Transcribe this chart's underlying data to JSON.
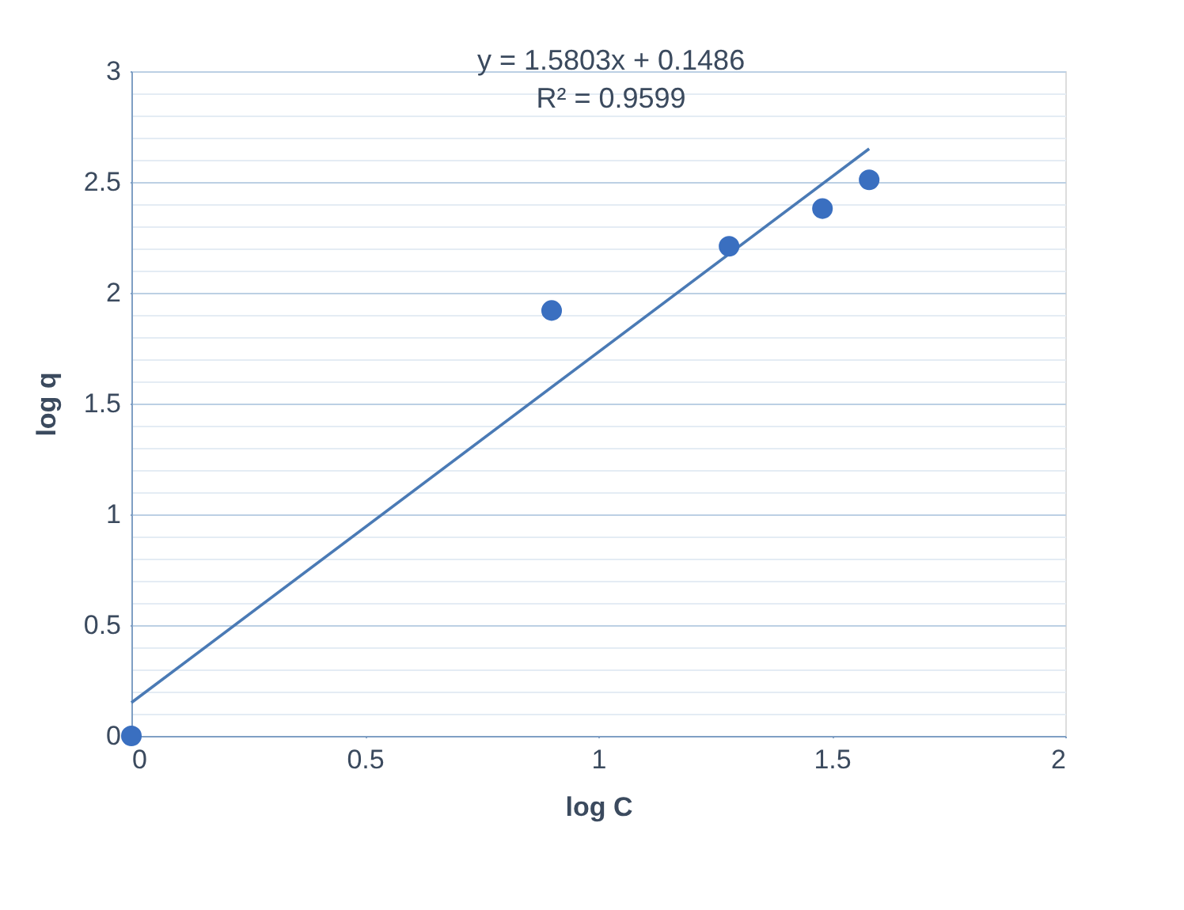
{
  "chart_data": {
    "type": "scatter",
    "xlabel": "log C",
    "ylabel": "log q",
    "annotations": [
      "y = 1.5803x + 0.1486",
      "R² = 0.9599"
    ],
    "series": [
      {
        "color": "#3a6fc0",
        "marker": "circle",
        "x": [
          0,
          0.9,
          1.28,
          1.48,
          1.58
        ],
        "values": [
          0,
          1.92,
          2.21,
          2.38,
          2.51
        ]
      },
      {
        "type": "line",
        "color": "#4a7ab5",
        "marker": "none",
        "line_style": "solid",
        "x": [
          0,
          1.58
        ],
        "values": [
          0.15,
          2.65
        ]
      }
    ],
    "xlim": [
      0,
      2
    ],
    "xticks": [
      0,
      0.5,
      1,
      1.5,
      2
    ],
    "ylim": [
      0,
      3
    ],
    "yticks": [
      0,
      {
        "value": 0.1,
        "label": null
      },
      {
        "value": 0.2,
        "label": null
      },
      {
        "value": 0.3,
        "label": null
      },
      {
        "value": 0.4,
        "label": null
      },
      0.5,
      {
        "value": 0.6,
        "label": null
      },
      {
        "value": 0.7,
        "label": null
      },
      {
        "value": 0.8,
        "label": null
      },
      {
        "value": 0.9,
        "label": null
      },
      1,
      {
        "value": 1.1,
        "label": null
      },
      {
        "value": 1.2,
        "label": null
      },
      {
        "value": 1.3,
        "label": null
      },
      {
        "value": 1.4,
        "label": null
      },
      1.5,
      {
        "value": 1.6,
        "label": null
      },
      {
        "value": 1.7,
        "label": null
      },
      {
        "value": 1.8,
        "label": null
      },
      {
        "value": 1.9,
        "label": null
      },
      2,
      {
        "value": 2.1,
        "label": null
      },
      {
        "value": 2.2,
        "label": null
      },
      {
        "value": 2.3,
        "label": null
      },
      {
        "value": 2.4,
        "label": null
      },
      2.5,
      {
        "value": 2.6,
        "label": null
      },
      {
        "value": 2.7,
        "label": null
      },
      {
        "value": 2.8,
        "label": null
      },
      {
        "value": 2.9,
        "label": null
      },
      3
    ],
    "grid": "y"
  }
}
